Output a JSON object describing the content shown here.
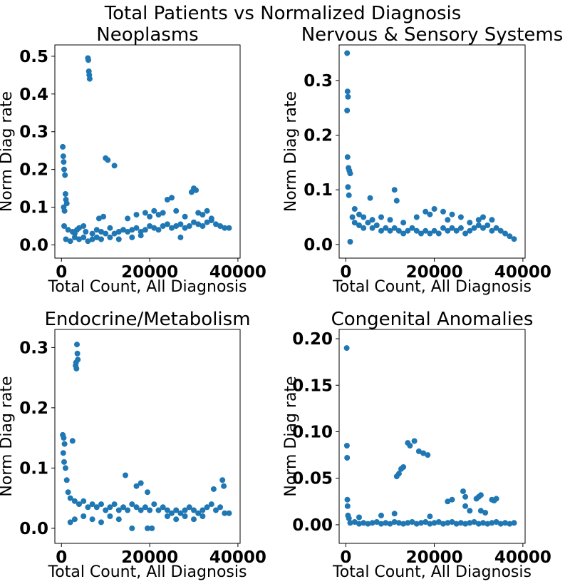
{
  "figure": {
    "suptitle": "Total Patients vs Normalized Diagnosis"
  },
  "colors": {
    "points": "#1f77b4"
  },
  "chart_data": [
    {
      "type": "scatter",
      "title": "Neoplasms",
      "xlabel": "Total Count, All Diagnosis",
      "ylabel": "Norm Diag rate",
      "xlim": [
        -1500,
        40500
      ],
      "ylim": [
        -0.035,
        0.53
      ],
      "xticks": [
        0,
        20000,
        40000
      ],
      "xtick_labels": [
        "0",
        "20000",
        "40000"
      ],
      "yticks": [
        0.0,
        0.1,
        0.2,
        0.3,
        0.4,
        0.5
      ],
      "ytick_labels": [
        "0.0",
        "0.1",
        "0.2",
        "0.3",
        "0.4",
        "0.5"
      ],
      "x": [
        300,
        400,
        500,
        600,
        800,
        900,
        1000,
        1200,
        500,
        700,
        6000,
        6100,
        6200,
        6300,
        6400,
        10000,
        10500,
        12000,
        600,
        1500,
        2500,
        3000,
        3500,
        4000,
        5000,
        5500,
        7000,
        8000,
        9000,
        10000,
        11000,
        12000,
        13000,
        14000,
        15000,
        16000,
        17000,
        18000,
        19000,
        20000,
        21000,
        22000,
        23000,
        24000,
        25000,
        26000,
        27000,
        28000,
        29000,
        30000,
        31000,
        32000,
        33000,
        34000,
        35000,
        36000,
        37000,
        38000,
        20000,
        22000,
        24000,
        25000,
        29500,
        30000,
        30500,
        8500,
        9500,
        15000,
        17000,
        19000,
        21000,
        23000,
        26000,
        28000,
        31000,
        32000,
        33000,
        34000,
        1000,
        2000,
        3000,
        4000,
        5000,
        6000,
        7000,
        8000,
        9000,
        11000,
        13000,
        16000,
        18000,
        27000
      ],
      "y": [
        0.26,
        0.235,
        0.22,
        0.2,
        0.185,
        0.135,
        0.12,
        0.11,
        0.1,
        0.09,
        0.495,
        0.49,
        0.46,
        0.45,
        0.44,
        0.23,
        0.225,
        0.21,
        0.05,
        0.04,
        0.035,
        0.03,
        0.04,
        0.045,
        0.05,
        0.035,
        0.03,
        0.04,
        0.035,
        0.03,
        0.045,
        0.03,
        0.035,
        0.04,
        0.035,
        0.04,
        0.045,
        0.035,
        0.04,
        0.05,
        0.045,
        0.04,
        0.05,
        0.055,
        0.045,
        0.05,
        0.055,
        0.045,
        0.05,
        0.06,
        0.055,
        0.05,
        0.06,
        0.065,
        0.055,
        0.05,
        0.045,
        0.045,
        0.075,
        0.08,
        0.12,
        0.125,
        0.14,
        0.15,
        0.145,
        0.07,
        0.075,
        0.07,
        0.08,
        0.085,
        0.09,
        0.085,
        0.09,
        0.075,
        0.085,
        0.08,
        0.09,
        0.07,
        0.015,
        0.01,
        0.02,
        0.015,
        0.02,
        0.01,
        0.015,
        0.02,
        0.015,
        0.02,
        0.015,
        0.02,
        0.025,
        0.02
      ]
    },
    {
      "type": "scatter",
      "title": "Nervous & Sensory Systems",
      "xlabel": "Total Count, All Diagnosis",
      "ylabel": "Norm Diag rate",
      "xlim": [
        -1500,
        40500
      ],
      "ylim": [
        -0.025,
        0.365
      ],
      "xticks": [
        0,
        20000,
        40000
      ],
      "xtick_labels": [
        "0",
        "20000",
        "40000"
      ],
      "yticks": [
        0.0,
        0.1,
        0.2,
        0.3
      ],
      "ytick_labels": [
        "0.0",
        "0.1",
        "0.2",
        "0.3"
      ],
      "x": [
        300,
        400,
        500,
        300,
        400,
        600,
        800,
        1000,
        500,
        700,
        1500,
        2000,
        3000,
        4000,
        5000,
        6000,
        7000,
        8000,
        9000,
        10000,
        11000,
        12000,
        13000,
        14000,
        15000,
        16000,
        17000,
        18000,
        19000,
        20000,
        21000,
        22000,
        23000,
        24000,
        25000,
        26000,
        27000,
        28000,
        29000,
        30000,
        31000,
        32000,
        33000,
        34000,
        35000,
        36000,
        37000,
        38000,
        5500,
        11000,
        11500,
        18000,
        20000,
        22000,
        24000,
        31000,
        33000,
        2000,
        3000,
        4000,
        6000,
        8000,
        10000,
        13000,
        16000,
        19000,
        23000,
        26000,
        28000,
        30000,
        1000
      ],
      "y": [
        0.35,
        0.28,
        0.27,
        0.245,
        0.16,
        0.14,
        0.135,
        0.13,
        0.105,
        0.09,
        0.05,
        0.04,
        0.035,
        0.03,
        0.04,
        0.03,
        0.035,
        0.025,
        0.03,
        0.025,
        0.03,
        0.025,
        0.02,
        0.025,
        0.03,
        0.025,
        0.02,
        0.025,
        0.02,
        0.025,
        0.02,
        0.03,
        0.025,
        0.03,
        0.025,
        0.03,
        0.02,
        0.025,
        0.03,
        0.035,
        0.03,
        0.035,
        0.025,
        0.03,
        0.025,
        0.02,
        0.015,
        0.01,
        0.085,
        0.1,
        0.08,
        0.06,
        0.065,
        0.06,
        0.055,
        0.05,
        0.045,
        0.065,
        0.055,
        0.05,
        0.045,
        0.05,
        0.045,
        0.04,
        0.05,
        0.055,
        0.045,
        0.05,
        0.04,
        0.045,
        0.005
      ]
    },
    {
      "type": "scatter",
      "title": "Endocrine/Metabolism",
      "xlabel": "Total Count, All Diagnosis",
      "ylabel": "Norm Diag rate",
      "xlim": [
        -1500,
        40500
      ],
      "ylim": [
        -0.025,
        0.33
      ],
      "xticks": [
        0,
        20000,
        40000
      ],
      "xtick_labels": [
        "0",
        "20000",
        "40000"
      ],
      "yticks": [
        0.0,
        0.1,
        0.2,
        0.3
      ],
      "ytick_labels": [
        "0.0",
        "0.1",
        "0.2",
        "0.3"
      ],
      "x": [
        3500,
        3600,
        3700,
        3300,
        3200,
        3400,
        300,
        500,
        700,
        2500,
        400,
        600,
        900,
        1200,
        1500,
        2000,
        3000,
        4000,
        5000,
        6000,
        7000,
        8000,
        9000,
        10000,
        11000,
        12000,
        13000,
        14000,
        15000,
        16000,
        17000,
        18000,
        19000,
        20000,
        21000,
        22000,
        23000,
        24000,
        25000,
        26000,
        27000,
        28000,
        29000,
        30000,
        31000,
        32000,
        33000,
        34000,
        35000,
        36000,
        37000,
        38000,
        14500,
        17000,
        18000,
        19500,
        36500,
        36800,
        34500,
        16000,
        19500,
        20500,
        2000,
        3000,
        5000,
        7000,
        9000,
        11000,
        13000,
        24000,
        26000,
        28000,
        30000,
        32000
      ],
      "y": [
        0.305,
        0.29,
        0.28,
        0.275,
        0.27,
        0.265,
        0.155,
        0.15,
        0.14,
        0.145,
        0.125,
        0.11,
        0.1,
        0.08,
        0.06,
        0.05,
        0.045,
        0.04,
        0.045,
        0.035,
        0.04,
        0.035,
        0.04,
        0.03,
        0.035,
        0.04,
        0.03,
        0.035,
        0.03,
        0.04,
        0.035,
        0.03,
        0.035,
        0.03,
        0.04,
        0.03,
        0.035,
        0.03,
        0.025,
        0.03,
        0.025,
        0.03,
        0.035,
        0.03,
        0.025,
        0.03,
        0.035,
        0.04,
        0.03,
        0.035,
        0.025,
        0.025,
        0.088,
        0.07,
        0.075,
        0.06,
        0.08,
        0.07,
        0.065,
        0.0,
        0.0,
        0.0,
        0.01,
        0.015,
        0.02,
        0.015,
        0.01,
        0.02,
        0.015,
        0.02,
        0.015,
        0.02,
        0.015,
        0.02
      ]
    },
    {
      "type": "scatter",
      "title": "Congenital Anomalies",
      "xlabel": "Total Count, All Diagnosis",
      "ylabel": "Norm Diag rate",
      "xlim": [
        -1500,
        40500
      ],
      "ylim": [
        -0.02,
        0.21
      ],
      "xticks": [
        0,
        20000,
        40000
      ],
      "xtick_labels": [
        "0",
        "20000",
        "40000"
      ],
      "yticks": [
        0.0,
        0.05,
        0.1,
        0.15,
        0.2
      ],
      "ytick_labels": [
        "0.00",
        "0.05",
        "0.10",
        "0.15",
        "0.20"
      ],
      "x": [
        200,
        250,
        300,
        350,
        400,
        500,
        700,
        14000,
        14500,
        15500,
        16500,
        17500,
        18500,
        11500,
        12000,
        12500,
        13000,
        23000,
        24000,
        26500,
        27000,
        29500,
        30000,
        30500,
        33000,
        33500,
        34000,
        27000,
        28000,
        30500,
        31500,
        1000,
        2000,
        3000,
        4000,
        5000,
        6000,
        7000,
        8000,
        9000,
        10000,
        11000,
        12000,
        13000,
        14000,
        15000,
        16000,
        17000,
        18000,
        19000,
        20000,
        21000,
        22000,
        23000,
        24000,
        25000,
        26000,
        27000,
        28000,
        29000,
        30000,
        31000,
        32000,
        33000,
        34000,
        35000,
        36000,
        37000,
        38000,
        3000,
        8000,
        11000,
        19000
      ],
      "y": [
        0.19,
        0.085,
        0.072,
        0.027,
        0.02,
        0.01,
        0.007,
        0.088,
        0.085,
        0.09,
        0.079,
        0.077,
        0.075,
        0.052,
        0.055,
        0.06,
        0.062,
        0.025,
        0.027,
        0.036,
        0.03,
        0.028,
        0.03,
        0.032,
        0.027,
        0.026,
        0.028,
        0.02,
        0.015,
        0.015,
        0.013,
        0.002,
        0.003,
        0.001,
        0.002,
        0.001,
        0.002,
        0.003,
        0.001,
        0.002,
        0.001,
        0.003,
        0.002,
        0.001,
        0.002,
        0.003,
        0.001,
        0.002,
        0.003,
        0.001,
        0.002,
        0.003,
        0.001,
        0.002,
        0.003,
        0.001,
        0.002,
        0.001,
        0.002,
        0.003,
        0.001,
        0.002,
        0.001,
        0.002,
        0.003,
        0.001,
        0.002,
        0.001,
        0.002,
        0.008,
        0.01,
        0.012,
        0.009
      ]
    }
  ]
}
